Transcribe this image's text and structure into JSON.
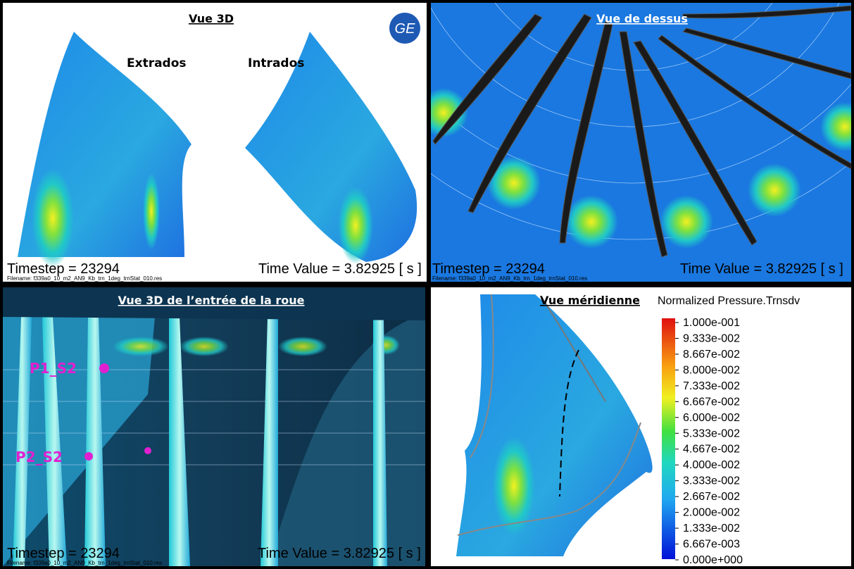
{
  "panels": [
    {
      "title": "Vue 3D",
      "labels": [
        "Extrados",
        "Intrados"
      ],
      "timestep": "Timestep = 23294",
      "time_value": "Time Value = 3.82925 [ s ]",
      "filename": "Filename: f339a0_10_m2_AN9_Kb_trn_1deg_trnStat_010.res"
    },
    {
      "title": "Vue de dessus",
      "timestep": "Timestep = 23294",
      "time_value": "Time Value = 3.82925 [ s ]",
      "filename": "Filename: f339a0_10_m2_AN9_Kb_trn_1deg_trnStat_010.res"
    },
    {
      "title": "Vue 3D de l’entrée de la roue",
      "labels": [
        "P1_S2",
        "P2_S2"
      ],
      "timestep": "Timestep = 23294",
      "time_value": "Time Value = 3.82925 [ s ]",
      "filename": "Filename: f339a0_10_m2_AN9_Kb_trn_1deg_trnStat_010.res"
    },
    {
      "title": "Vue méridienne"
    }
  ],
  "legend": {
    "title": "Normalized Pressure.Trnsdv",
    "labels": [
      "1.000e-001",
      "9.333e-002",
      "8.667e-002",
      "8.000e-002",
      "7.333e-002",
      "6.667e-002",
      "6.000e-002",
      "5.333e-002",
      "4.667e-002",
      "4.000e-002",
      "3.333e-002",
      "2.667e-002",
      "2.000e-002",
      "1.333e-002",
      "6.667e-003",
      "0.000e+000"
    ]
  }
}
